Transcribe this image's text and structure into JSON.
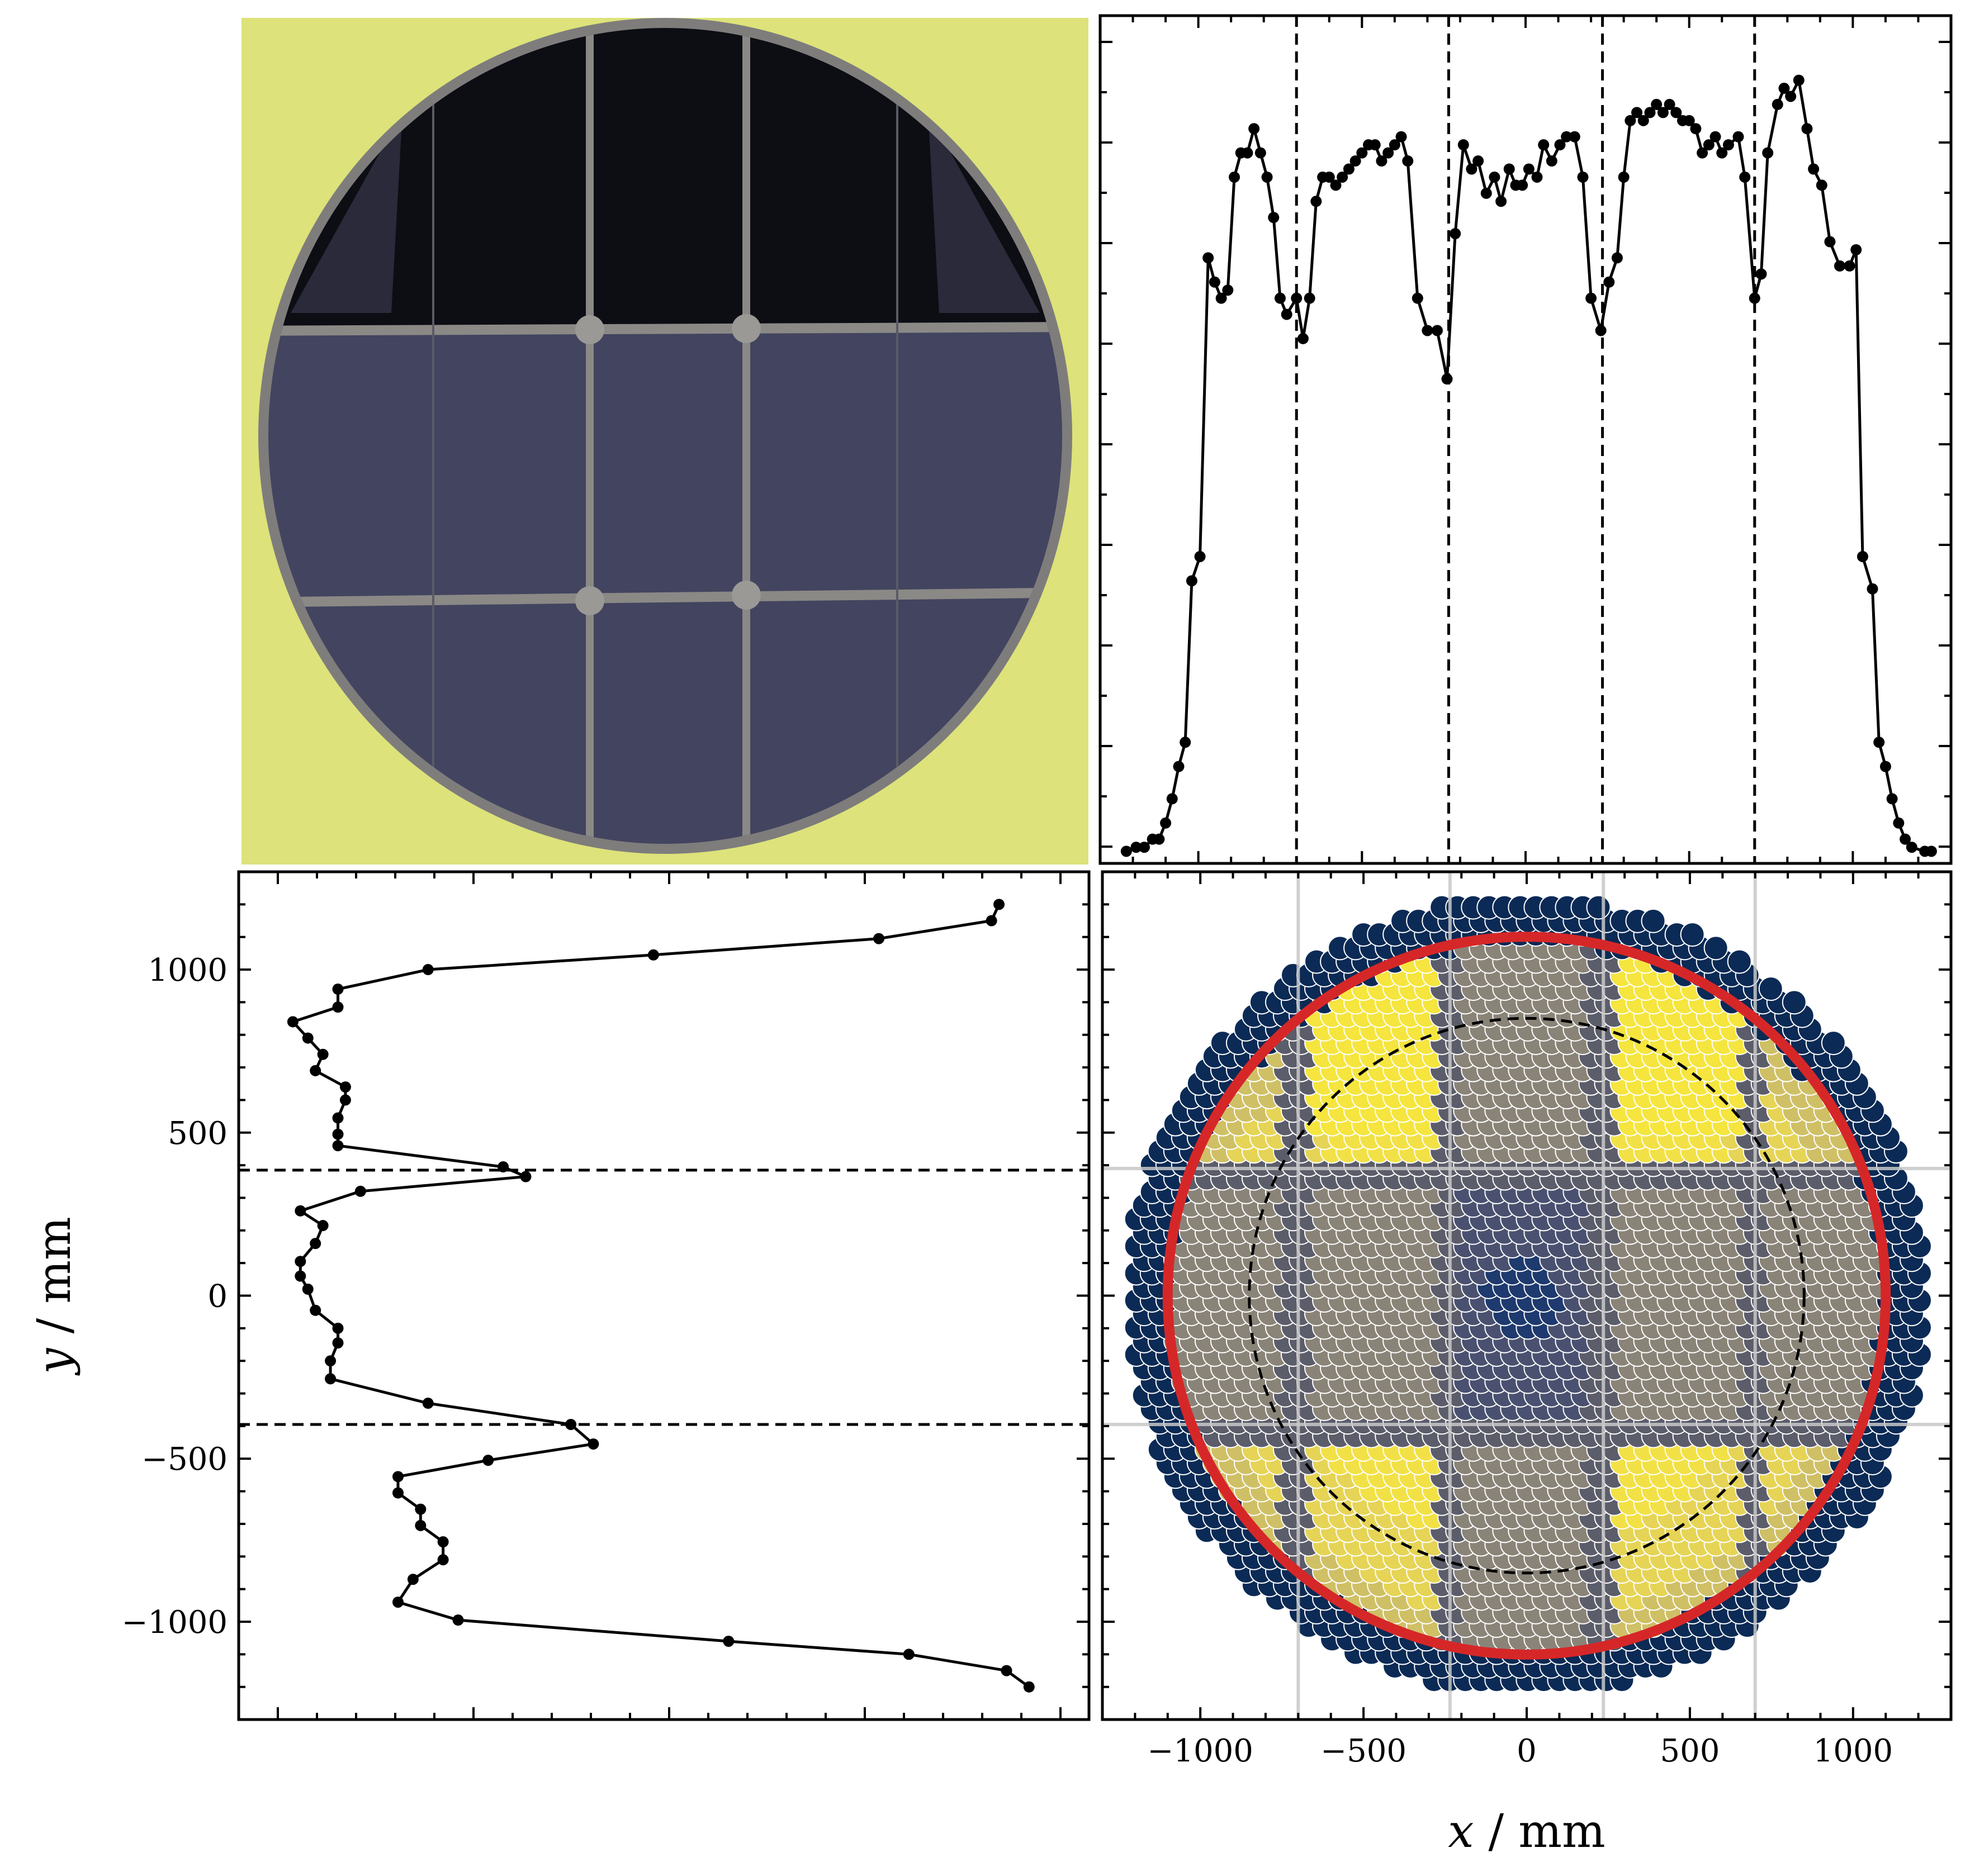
{
  "colors": {
    "line": "#000000",
    "red_circle": "#d62728",
    "photo_background": "#dde27a",
    "photo_panels": "#43445f",
    "photo_dark": "#0d0d14",
    "photo_frame": "#7e7d7c",
    "dot_outer": "#0b2a55",
    "dot_inner_bright": "#f2e146",
    "dot_shadow": "#6e6e78",
    "grid_line": "#c8c8c8"
  },
  "chart_data": [
    {
      "panel": "photo",
      "type": "other",
      "description_visible": "photograph of circular window with mirror panels"
    },
    {
      "panel": "top-right",
      "type": "line",
      "xlim": [
        -1300,
        1300
      ],
      "ylim": [
        0,
        1.05
      ],
      "vlines": [
        -700,
        -235,
        235,
        700
      ],
      "x": [
        -1220,
        -1190,
        -1165,
        -1140,
        -1120,
        -1100,
        -1080,
        -1060,
        -1040,
        -1020,
        -995,
        -970,
        -950,
        -930,
        -910,
        -890,
        -870,
        -850,
        -830,
        -810,
        -790,
        -770,
        -750,
        -730,
        -700,
        -680,
        -660,
        -640,
        -620,
        -600,
        -580,
        -560,
        -540,
        -520,
        -500,
        -480,
        -460,
        -440,
        -420,
        -400,
        -380,
        -360,
        -330,
        -300,
        -270,
        -240,
        -215,
        -190,
        -165,
        -145,
        -120,
        -95,
        -75,
        -50,
        -30,
        -10,
        10,
        35,
        55,
        80,
        105,
        125,
        150,
        175,
        200,
        230,
        255,
        280,
        300,
        320,
        340,
        360,
        380,
        400,
        420,
        440,
        460,
        480,
        500,
        520,
        540,
        560,
        580,
        600,
        620,
        650,
        670,
        700,
        720,
        740,
        770,
        790,
        810,
        835,
        860,
        880,
        905,
        930,
        960,
        990,
        1010,
        1030,
        1060,
        1080,
        1100,
        1120,
        1140,
        1160,
        1180,
        1220,
        1240
      ],
      "y": [
        0.015,
        0.02,
        0.02,
        0.03,
        0.03,
        0.05,
        0.08,
        0.12,
        0.15,
        0.35,
        0.38,
        0.75,
        0.72,
        0.7,
        0.71,
        0.85,
        0.88,
        0.88,
        0.91,
        0.88,
        0.85,
        0.8,
        0.7,
        0.68,
        0.7,
        0.65,
        0.7,
        0.82,
        0.85,
        0.85,
        0.84,
        0.85,
        0.86,
        0.87,
        0.88,
        0.89,
        0.89,
        0.87,
        0.88,
        0.89,
        0.9,
        0.87,
        0.7,
        0.66,
        0.66,
        0.6,
        0.78,
        0.89,
        0.86,
        0.87,
        0.83,
        0.85,
        0.82,
        0.86,
        0.84,
        0.84,
        0.86,
        0.85,
        0.89,
        0.87,
        0.89,
        0.9,
        0.9,
        0.85,
        0.7,
        0.66,
        0.72,
        0.75,
        0.85,
        0.92,
        0.93,
        0.92,
        0.93,
        0.94,
        0.93,
        0.94,
        0.93,
        0.92,
        0.92,
        0.91,
        0.88,
        0.89,
        0.9,
        0.88,
        0.89,
        0.9,
        0.85,
        0.7,
        0.73,
        0.88,
        0.94,
        0.96,
        0.95,
        0.97,
        0.91,
        0.86,
        0.84,
        0.77,
        0.74,
        0.74,
        0.76,
        0.38,
        0.34,
        0.15,
        0.12,
        0.08,
        0.05,
        0.03,
        0.02,
        0.015,
        0.015
      ]
    },
    {
      "panel": "bottom-left",
      "type": "line",
      "ylabel": "y / mm",
      "yticks": [
        1000,
        500,
        0,
        -500,
        -1000
      ],
      "ytick_labels": [
        "1000",
        "500",
        "0",
        "−500",
        "−1000"
      ],
      "ylim": [
        -1300,
        1300
      ],
      "xlim": [
        0,
        1.05
      ],
      "hlines": [
        385,
        -395
      ],
      "y": [
        1200,
        1150,
        1095,
        1045,
        1000,
        940,
        885,
        840,
        790,
        740,
        690,
        640,
        600,
        545,
        495,
        460,
        395,
        365,
        320,
        260,
        215,
        160,
        105,
        60,
        20,
        -45,
        -100,
        -145,
        -200,
        -255,
        -330,
        -395,
        -455,
        -505,
        -555,
        -605,
        -655,
        -705,
        -755,
        -810,
        -870,
        -940,
        -995,
        -1060,
        -1100,
        -1150,
        -1200
      ],
      "x": [
        0.96,
        0.95,
        0.8,
        0.5,
        0.2,
        0.08,
        0.08,
        0.02,
        0.04,
        0.06,
        0.05,
        0.09,
        0.09,
        0.08,
        0.08,
        0.08,
        0.3,
        0.33,
        0.11,
        0.03,
        0.06,
        0.05,
        0.03,
        0.03,
        0.04,
        0.05,
        0.08,
        0.08,
        0.07,
        0.07,
        0.2,
        0.39,
        0.42,
        0.28,
        0.16,
        0.16,
        0.19,
        0.19,
        0.22,
        0.22,
        0.18,
        0.16,
        0.24,
        0.6,
        0.84,
        0.97,
        1.0
      ]
    },
    {
      "panel": "bottom-right",
      "type": "scatter",
      "xlabel": "x / mm",
      "xticks": [
        -1000,
        -500,
        0,
        500,
        1000
      ],
      "xtick_labels": [
        "−1000",
        "−500",
        "0",
        "500",
        "1000"
      ],
      "xlim": [
        -1300,
        1300
      ],
      "ylim": [
        -1300,
        1300
      ],
      "dot_field_radius": 1220,
      "red_circle_radius": 1100,
      "dashed_circle_radius": 850,
      "grid_x": [
        -700,
        -235,
        235,
        700
      ],
      "grid_y": [
        390,
        -395
      ]
    }
  ]
}
